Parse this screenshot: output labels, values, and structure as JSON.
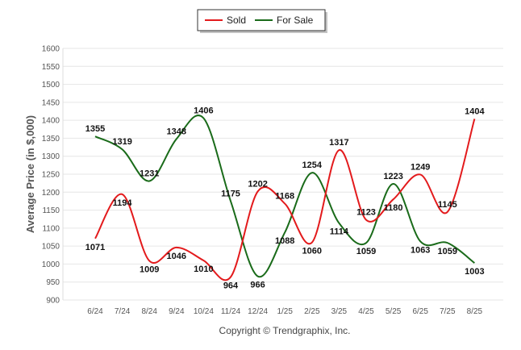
{
  "chart_data": {
    "type": "line",
    "ylabel": "Average Price (in $,000)",
    "ylim": [
      900,
      1600
    ],
    "yticks": [
      900,
      950,
      1000,
      1050,
      1100,
      1150,
      1200,
      1250,
      1300,
      1350,
      1400,
      1450,
      1500,
      1550,
      1600
    ],
    "categories": [
      "6/24",
      "7/24",
      "8/24",
      "9/24",
      "10/24",
      "11/24",
      "12/24",
      "1/25",
      "2/25",
      "3/25",
      "4/25",
      "5/25",
      "6/25",
      "7/25",
      "8/25"
    ],
    "grid": true,
    "legend_position": "top-center",
    "series": [
      {
        "name": "Sold",
        "color": "#e31a1c",
        "values": [
          1071,
          1194,
          1009,
          1046,
          1010,
          964,
          1202,
          1168,
          1060,
          1317,
          1123,
          1180,
          1249,
          1145,
          1404
        ]
      },
      {
        "name": "For Sale",
        "color": "#1a6b1a",
        "values": [
          1355,
          1319,
          1231,
          1348,
          1406,
          1175,
          966,
          1088,
          1254,
          1114,
          1059,
          1223,
          1063,
          1059,
          1003
        ]
      }
    ]
  },
  "credit": "Copyright © Trendgraphix, Inc."
}
